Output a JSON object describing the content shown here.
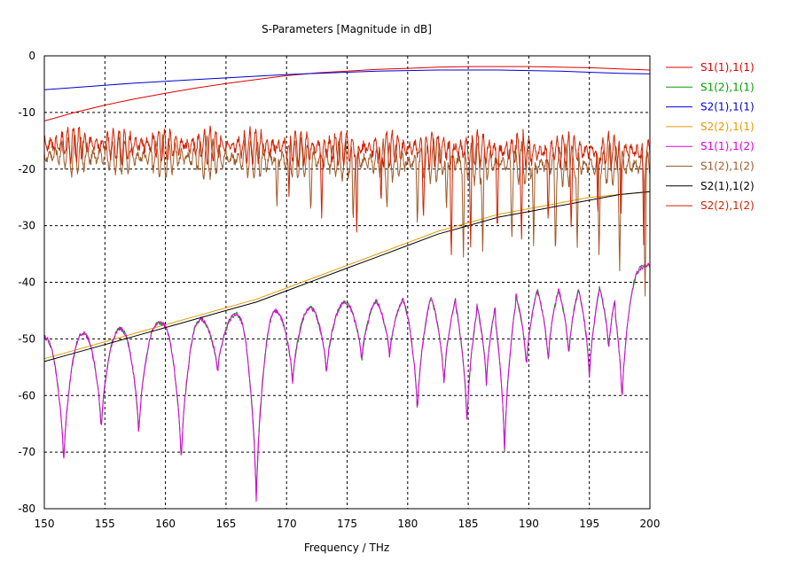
{
  "chart_data": {
    "type": "line",
    "title": "S-Parameters [Magnitude in dB]",
    "xlabel": "Frequency / THz",
    "ylabel": "",
    "xlim": [
      150,
      200
    ],
    "ylim": [
      -80,
      0
    ],
    "xticks": [
      "150",
      "155",
      "160",
      "165",
      "170",
      "175",
      "180",
      "185",
      "190",
      "195",
      "200"
    ],
    "yticks": [
      "0",
      "-10",
      "-20",
      "-30",
      "-40",
      "-50",
      "-60",
      "-70",
      "-80"
    ],
    "grid": true,
    "legend_position": "right",
    "series": [
      {
        "name": "S1(1),1(1)",
        "color": "#e00000",
        "x": [
          150,
          152.5,
          155,
          157.5,
          160,
          162.5,
          165,
          167.5,
          170,
          172.5,
          175,
          177.5,
          180,
          182.5,
          185,
          187.5,
          190,
          192.5,
          195,
          197.5,
          200
        ],
        "values": [
          -11.5,
          -10.0,
          -8.7,
          -7.6,
          -6.6,
          -5.7,
          -4.9,
          -4.2,
          -3.5,
          -3.0,
          -2.7,
          -2.4,
          -2.2,
          -2.0,
          -1.9,
          -1.9,
          -1.9,
          -2.0,
          -2.1,
          -2.3,
          -2.5
        ]
      },
      {
        "name": "S1(2),1(1)",
        "color": "#00a000",
        "wave": {
          "base": [
            -49.5,
            -37
          ],
          "amp": 14,
          "sharp": 0.8,
          "nodes": [
            151.6,
            154.7,
            157.8,
            161.3,
            164.3,
            167.5,
            170.5,
            173.3,
            176.2,
            178.5,
            180.8,
            183.0,
            184.9,
            186.5,
            188.0,
            189.8,
            191.6,
            193.3,
            195.0,
            196.6,
            197.7
          ],
          "nodeDepth": [
            -72,
            -66,
            -67,
            -72,
            -56,
            -78,
            -58,
            -56,
            -54,
            -53,
            -63,
            -58,
            -65,
            -58,
            -70,
            -55,
            -54,
            -53,
            -57,
            -52,
            -61
          ]
        }
      },
      {
        "name": "S2(1),1(1)",
        "color": "#0000d0",
        "x": [
          150,
          152.5,
          155,
          157.5,
          160,
          162.5,
          165,
          167.5,
          170,
          172.5,
          175,
          177.5,
          180,
          182.5,
          185,
          187.5,
          190,
          192.5,
          195,
          197.5,
          200
        ],
        "values": [
          -6.0,
          -5.6,
          -5.2,
          -4.8,
          -4.5,
          -4.2,
          -3.9,
          -3.6,
          -3.3,
          -3.1,
          -2.9,
          -2.7,
          -2.6,
          -2.5,
          -2.5,
          -2.5,
          -2.6,
          -2.7,
          -2.9,
          -3.1,
          -3.2
        ]
      },
      {
        "name": "S2(2),1(1)",
        "color": "#e69a00",
        "x": [
          150,
          152.5,
          155,
          157.5,
          160,
          162.5,
          165,
          167.5,
          170,
          172.5,
          175,
          177.5,
          180,
          182.5,
          185,
          187.5,
          190,
          192.5,
          195,
          197.5,
          200
        ],
        "values": [
          -53.5,
          -52.0,
          -50.5,
          -49.0,
          -47.5,
          -46.0,
          -44.5,
          -43.0,
          -41.0,
          -39.0,
          -37.0,
          -35.0,
          -33.0,
          -31.0,
          -29.5,
          -28.0,
          -27.0,
          -26.0,
          -25.0,
          -24.5,
          -24.0
        ]
      },
      {
        "name": "S1(1),1(2)",
        "color": "#e000e0",
        "wave": {
          "base": [
            -49.5,
            -37
          ],
          "amp": 14,
          "sharp": 0.8,
          "nodes": [
            151.6,
            154.7,
            157.8,
            161.3,
            164.3,
            167.5,
            170.5,
            173.3,
            176.2,
            178.5,
            180.8,
            183.0,
            184.9,
            186.5,
            188.0,
            189.8,
            191.6,
            193.3,
            195.0,
            196.6,
            197.7
          ],
          "nodeDepth": [
            -72,
            -66,
            -67,
            -72,
            -56,
            -79,
            -58,
            -56,
            -54,
            -53,
            -63,
            -58,
            -65,
            -58,
            -70,
            -55,
            -54,
            -53,
            -57,
            -52,
            -61
          ]
        }
      },
      {
        "name": "S1(2),1(2)",
        "color": "#a05a28",
        "wave": {
          "base": [
            -17.5,
            -19.5
          ],
          "amp": 3.5,
          "period": 0.52,
          "dips": [
            [
              169.2,
              -27
            ],
            [
              172,
              -28
            ],
            [
              175.5,
              -30
            ],
            [
              178.3,
              -27
            ],
            [
              180.8,
              -30
            ],
            [
              183.2,
              -28
            ],
            [
              184.6,
              -36
            ],
            [
              186.2,
              -36
            ],
            [
              188.6,
              -33
            ],
            [
              190.4,
              -34
            ],
            [
              192.2,
              -36
            ],
            [
              194.0,
              -35
            ],
            [
              195.8,
              -36
            ],
            [
              197.5,
              -38
            ],
            [
              199.6,
              -43
            ]
          ]
        }
      },
      {
        "name": "S2(1),1(2)",
        "color": "#000000",
        "x": [
          150,
          152.5,
          155,
          157.5,
          160,
          162.5,
          165,
          167.5,
          170,
          172.5,
          175,
          177.5,
          180,
          182.5,
          185,
          187.5,
          190,
          192.5,
          195,
          197.5,
          200
        ],
        "values": [
          -54.0,
          -52.5,
          -51.0,
          -49.5,
          -48.0,
          -46.5,
          -45.0,
          -43.5,
          -41.5,
          -39.5,
          -37.5,
          -35.5,
          -33.5,
          -31.5,
          -30.0,
          -28.5,
          -27.5,
          -26.5,
          -25.5,
          -24.5,
          -24.0
        ]
      },
      {
        "name": "S2(2),1(2)",
        "color": "#d42000",
        "wave": {
          "base": [
            -15.5,
            -17.0
          ],
          "amp": 3.0,
          "period": 0.47,
          "dips": [
            [
              170.2,
              -25
            ],
            [
              172.9,
              -29
            ],
            [
              175.8,
              -32
            ],
            [
              177.8,
              -27
            ],
            [
              181.3,
              -29
            ],
            [
              183.6,
              -37
            ],
            [
              185.2,
              -34
            ],
            [
              187.4,
              -32
            ],
            [
              189.4,
              -33
            ],
            [
              191.6,
              -30
            ],
            [
              193.5,
              -31
            ],
            [
              195.7,
              -29
            ],
            [
              197.6,
              -30
            ],
            [
              199.5,
              -36
            ]
          ]
        }
      }
    ]
  }
}
